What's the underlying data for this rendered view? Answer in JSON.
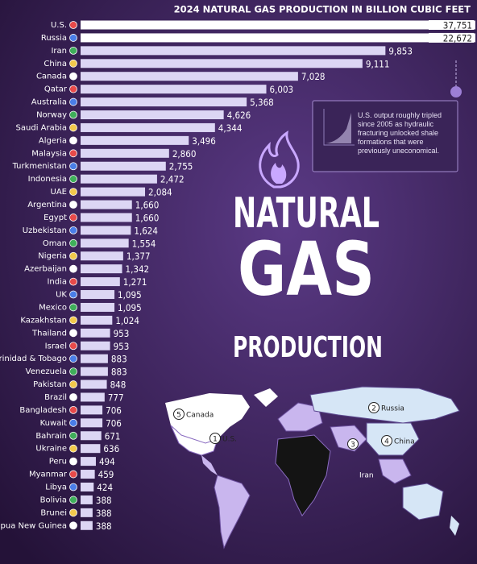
{
  "chart_data": {
    "type": "bar",
    "title": "2024 NATURAL GAS PRODUCTION IN BILLION CUBIC FEET",
    "headline": [
      "NATURAL",
      "GAS",
      "PRODUCTION"
    ],
    "annotation": "U.S. output roughly tripled since 2005 as hydraulic fracturing unlocked shale formations that were previously uneconomical.",
    "categories": [
      "U.S.",
      "Russia",
      "Iran",
      "China",
      "Canada",
      "Qatar",
      "Australia",
      "Norway",
      "Saudi Arabia",
      "Algeria",
      "Malaysia",
      "Turkmenistan",
      "Indonesia",
      "UAE",
      "Argentina",
      "Egypt",
      "Uzbekistan",
      "Oman",
      "Nigeria",
      "Azerbaijan",
      "India",
      "UK",
      "Mexico",
      "Kazakhstan",
      "Thailand",
      "Israel",
      "Trinidad & Tobago",
      "Venezuela",
      "Pakistan",
      "Brazil",
      "Bangladesh",
      "Kuwait",
      "Bahrain",
      "Ukraine",
      "Peru",
      "Myanmar",
      "Libya",
      "Bolivia",
      "Brunei",
      "Papua New Guinea"
    ],
    "values": [
      37751,
      22672,
      9853,
      9111,
      7028,
      6003,
      5368,
      4626,
      4344,
      3496,
      2860,
      2755,
      2472,
      2084,
      1660,
      1660,
      1624,
      1554,
      1377,
      1342,
      1271,
      1095,
      1095,
      1024,
      953,
      953,
      883,
      883,
      848,
      777,
      706,
      706,
      671,
      636,
      494,
      459,
      424,
      388,
      388,
      388
    ],
    "value_labels": [
      "37,751",
      "22,672",
      "9,853",
      "9,111",
      "7,028",
      "6,003",
      "5,368",
      "4,626",
      "4,344",
      "3,496",
      "2,860",
      "2,755",
      "2,472",
      "2,084",
      "1,660",
      "1,660",
      "1,624",
      "1,554",
      "1,377",
      "1,342",
      "1,271",
      "1,095",
      "1,095",
      "1,024",
      "953",
      "953",
      "883",
      "883",
      "848",
      "777",
      "706",
      "706",
      "671",
      "636",
      "494",
      "459",
      "424",
      "388",
      "388",
      "388"
    ],
    "color": "#dcd6f4",
    "map_labels": [
      {
        "rank": "1",
        "name": "U.S."
      },
      {
        "rank": "2",
        "name": "Russia"
      },
      {
        "rank": "3",
        "name": "Iran"
      },
      {
        "rank": "4",
        "name": "China"
      },
      {
        "rank": "5",
        "name": "Canada"
      }
    ]
  }
}
